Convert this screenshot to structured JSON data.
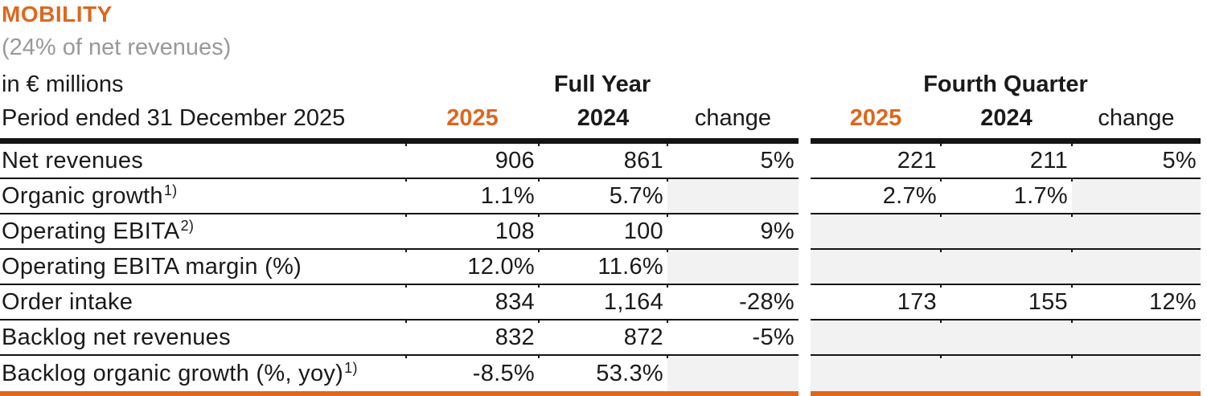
{
  "page": {
    "title": "MOBILITY",
    "subtitle": "(24% of net revenues)",
    "unit_label": "in € millions",
    "period_label": "Period ended 31 December 2025"
  },
  "groups": {
    "full_year": "Full Year",
    "fourth_quarter": "Fourth Quarter"
  },
  "columns": {
    "y2025": "2025",
    "y2024": "2024",
    "change": "change"
  },
  "colors": {
    "accent": "#DD671F",
    "border-orange": "#E0661A",
    "muted": "#999999",
    "shaded": "#F2F2F2",
    "line": "#141414",
    "text": "#1A1A1A"
  },
  "rows": [
    {
      "label": "Net revenues",
      "sup": "",
      "fy": {
        "y2025": "906",
        "y2024": "861",
        "change": "5%"
      },
      "fq": {
        "y2025": "221",
        "y2024": "211",
        "change": "5%"
      }
    },
    {
      "label": "Organic growth",
      "sup": "1)",
      "fy": {
        "y2025": "1.1%",
        "y2024": "5.7%",
        "change": ""
      },
      "fq": {
        "y2025": "2.7%",
        "y2024": "1.7%",
        "change": ""
      }
    },
    {
      "label": "Operating EBITA",
      "sup": "2)",
      "fy": {
        "y2025": "108",
        "y2024": "100",
        "change": "9%"
      },
      "fq": {
        "y2025": "",
        "y2024": "",
        "change": ""
      }
    },
    {
      "label": "Operating EBITA margin (%)",
      "sup": "",
      "fy": {
        "y2025": "12.0%",
        "y2024": "11.6%",
        "change": ""
      },
      "fq": {
        "y2025": "",
        "y2024": "",
        "change": ""
      }
    },
    {
      "label": "Order intake",
      "sup": "",
      "fy": {
        "y2025": "834",
        "y2024": "1,164",
        "change": "-28%"
      },
      "fq": {
        "y2025": "173",
        "y2024": "155",
        "change": "12%"
      }
    },
    {
      "label": "Backlog net revenues",
      "sup": "",
      "fy": {
        "y2025": "832",
        "y2024": "872",
        "change": "-5%"
      },
      "fq": {
        "y2025": "",
        "y2024": "",
        "change": ""
      }
    },
    {
      "label": "Backlog organic growth (%, yoy)",
      "sup": "1)",
      "fy": {
        "y2025": "-8.5%",
        "y2024": "53.3%",
        "change": ""
      },
      "fq": {
        "y2025": "",
        "y2024": "",
        "change": ""
      }
    }
  ]
}
